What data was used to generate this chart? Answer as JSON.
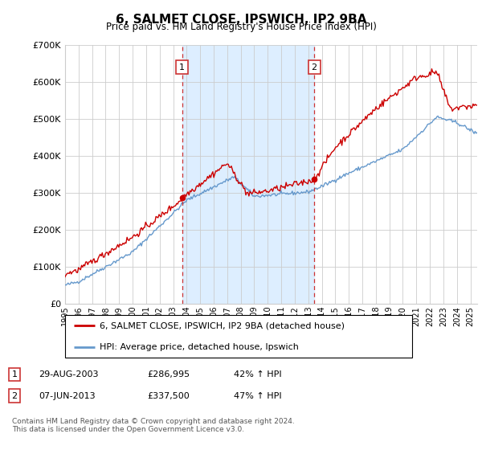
{
  "title": "6, SALMET CLOSE, IPSWICH, IP2 9BA",
  "subtitle": "Price paid vs. HM Land Registry's House Price Index (HPI)",
  "legend_line1": "6, SALMET CLOSE, IPSWICH, IP2 9BA (detached house)",
  "legend_line2": "HPI: Average price, detached house, Ipswich",
  "sale1_date": "29-AUG-2003",
  "sale1_price": "£286,995",
  "sale1_hpi": "42% ↑ HPI",
  "sale1_year": 2003.66,
  "sale1_value": 286995,
  "sale2_date": "07-JUN-2013",
  "sale2_price": "£337,500",
  "sale2_hpi": "47% ↑ HPI",
  "sale2_year": 2013.44,
  "sale2_value": 337500,
  "red_color": "#cc0000",
  "blue_color": "#6699cc",
  "shaded_color": "#ddeeff",
  "annotation_box_color": "#cc3333",
  "grid_color": "#cccccc",
  "background_color": "#ffffff",
  "ylim": [
    0,
    700000
  ],
  "xlim_start": 1995,
  "xlim_end": 2025.5,
  "footer": "Contains HM Land Registry data © Crown copyright and database right 2024.\nThis data is licensed under the Open Government Licence v3.0."
}
